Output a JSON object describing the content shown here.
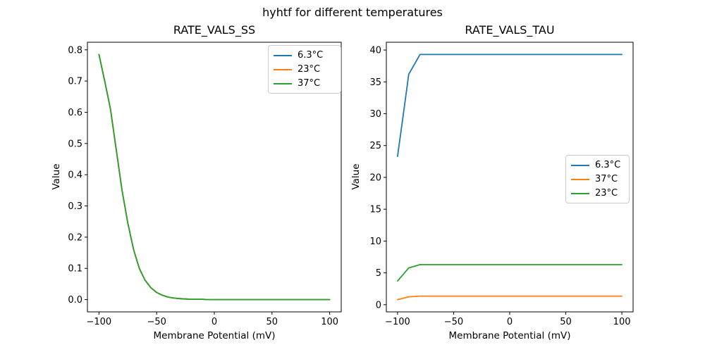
{
  "figure": {
    "suptitle": "hyhtf for different temperatures",
    "background": "#ffffff",
    "text_color": "#000000"
  },
  "chart_data": [
    {
      "type": "line",
      "title": "RATE_VALS_SS",
      "xlabel": "Membrane Potential (mV)",
      "ylabel": "Value",
      "xlim": [
        -110,
        110
      ],
      "ylim": [
        -0.0393,
        0.8243
      ],
      "xticks": [
        -100,
        -50,
        0,
        50,
        100
      ],
      "xtick_labels": [
        "−100",
        "−50",
        "0",
        "50",
        "100"
      ],
      "yticks": [
        0.0,
        0.1,
        0.2,
        0.3,
        0.4,
        0.5,
        0.6,
        0.7,
        0.8
      ],
      "ytick_labels": [
        "0.0",
        "0.1",
        "0.2",
        "0.3",
        "0.4",
        "0.5",
        "0.6",
        "0.7",
        "0.8"
      ],
      "grid": false,
      "legend": {
        "position": "upper-right",
        "labels": [
          "6.3°C",
          "23°C",
          "37°C"
        ]
      },
      "note": "all three temperature series overlap exactly; green drawn last is visible",
      "x": [
        -100,
        -95,
        -90,
        -85,
        -80,
        -75,
        -70,
        -65,
        -60,
        -55,
        -50,
        -45,
        -40,
        -35,
        -30,
        -25,
        -20,
        -15,
        -10,
        -5,
        0,
        5,
        10,
        15,
        20,
        25,
        30,
        35,
        40,
        45,
        50,
        55,
        60,
        65,
        70,
        75,
        80,
        85,
        90,
        95,
        100
      ],
      "series": [
        {
          "name": "6.3°C",
          "color": "#1f77b4",
          "values": [
            0.785,
            0.7,
            0.61,
            0.48,
            0.35,
            0.245,
            0.16,
            0.1,
            0.062,
            0.038,
            0.023,
            0.014,
            0.008,
            0.005,
            0.003,
            0.002,
            0.001,
            0.001,
            0.001,
            0,
            0,
            0,
            0,
            0,
            0,
            0,
            0,
            0,
            0,
            0,
            0,
            0,
            0,
            0,
            0,
            0,
            0,
            0,
            0,
            0,
            0
          ]
        },
        {
          "name": "23°C",
          "color": "#ff7f0e",
          "values": [
            0.785,
            0.7,
            0.61,
            0.48,
            0.35,
            0.245,
            0.16,
            0.1,
            0.062,
            0.038,
            0.023,
            0.014,
            0.008,
            0.005,
            0.003,
            0.002,
            0.001,
            0.001,
            0.001,
            0,
            0,
            0,
            0,
            0,
            0,
            0,
            0,
            0,
            0,
            0,
            0,
            0,
            0,
            0,
            0,
            0,
            0,
            0,
            0,
            0,
            0
          ]
        },
        {
          "name": "37°C",
          "color": "#2ca02c",
          "values": [
            0.785,
            0.7,
            0.61,
            0.48,
            0.35,
            0.245,
            0.16,
            0.1,
            0.062,
            0.038,
            0.023,
            0.014,
            0.008,
            0.005,
            0.003,
            0.002,
            0.001,
            0.001,
            0.001,
            0,
            0,
            0,
            0,
            0,
            0,
            0,
            0,
            0,
            0,
            0,
            0,
            0,
            0,
            0,
            0,
            0,
            0,
            0,
            0,
            0,
            0
          ]
        }
      ]
    },
    {
      "type": "line",
      "title": "RATE_VALS_TAU",
      "xlabel": "Membrane Potential (mV)",
      "ylabel": "Value",
      "xlim": [
        -110,
        110
      ],
      "ylim": [
        -1.125,
        41.225
      ],
      "xticks": [
        -100,
        -50,
        0,
        50,
        100
      ],
      "xtick_labels": [
        "−100",
        "−50",
        "0",
        "50",
        "100"
      ],
      "yticks": [
        0,
        5,
        10,
        15,
        20,
        25,
        30,
        35,
        40
      ],
      "ytick_labels": [
        "0",
        "5",
        "10",
        "15",
        "20",
        "25",
        "30",
        "35",
        "40"
      ],
      "grid": false,
      "legend": {
        "position": "center-right",
        "labels": [
          "6.3°C",
          "37°C",
          "23°C"
        ]
      },
      "note": "curves rise steeply from -100 mV and plateau from about -80 mV",
      "x": [
        -100,
        -95,
        -90,
        -85,
        -80,
        -75,
        -70,
        -65,
        -60,
        -55,
        -50,
        -45,
        -40,
        -35,
        -30,
        -25,
        -20,
        -15,
        -10,
        -5,
        0,
        5,
        10,
        15,
        20,
        25,
        30,
        35,
        40,
        45,
        50,
        55,
        60,
        65,
        70,
        75,
        80,
        85,
        90,
        95,
        100
      ],
      "series": [
        {
          "name": "6.3°C",
          "color": "#1f77b4",
          "values": [
            23.3,
            29.75,
            36.2,
            37.75,
            39.3,
            39.3,
            39.3,
            39.3,
            39.3,
            39.3,
            39.3,
            39.3,
            39.3,
            39.3,
            39.3,
            39.3,
            39.3,
            39.3,
            39.3,
            39.3,
            39.3,
            39.3,
            39.3,
            39.3,
            39.3,
            39.3,
            39.3,
            39.3,
            39.3,
            39.3,
            39.3,
            39.3,
            39.3,
            39.3,
            39.3,
            39.3,
            39.3,
            39.3,
            39.3,
            39.3,
            39.3
          ]
        },
        {
          "name": "37°C",
          "color": "#ff7f0e",
          "values": [
            0.8,
            1.02,
            1.24,
            1.3,
            1.35,
            1.35,
            1.35,
            1.35,
            1.35,
            1.35,
            1.35,
            1.35,
            1.35,
            1.35,
            1.35,
            1.35,
            1.35,
            1.35,
            1.35,
            1.35,
            1.35,
            1.35,
            1.35,
            1.35,
            1.35,
            1.35,
            1.35,
            1.35,
            1.35,
            1.35,
            1.35,
            1.35,
            1.35,
            1.35,
            1.35,
            1.35,
            1.35,
            1.35,
            1.35,
            1.35,
            1.35
          ]
        },
        {
          "name": "23°C",
          "color": "#2ca02c",
          "values": [
            3.73,
            4.76,
            5.79,
            6.04,
            6.29,
            6.29,
            6.29,
            6.29,
            6.29,
            6.29,
            6.29,
            6.29,
            6.29,
            6.29,
            6.29,
            6.29,
            6.29,
            6.29,
            6.29,
            6.29,
            6.29,
            6.29,
            6.29,
            6.29,
            6.29,
            6.29,
            6.29,
            6.29,
            6.29,
            6.29,
            6.29,
            6.29,
            6.29,
            6.29,
            6.29,
            6.29,
            6.29,
            6.29,
            6.29,
            6.29,
            6.29
          ]
        }
      ]
    }
  ]
}
